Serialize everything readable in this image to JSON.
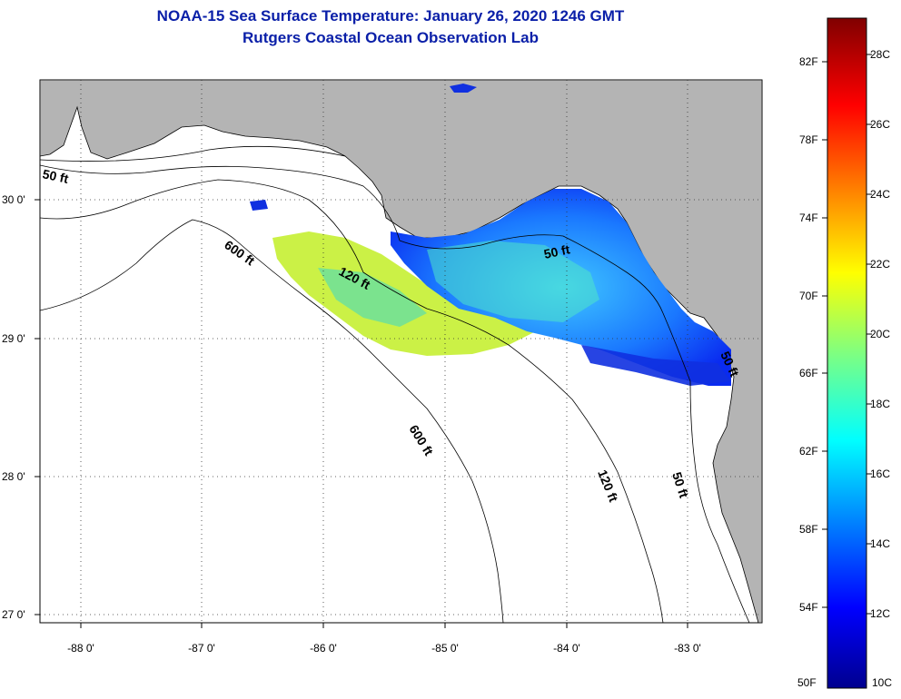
{
  "header": {
    "title_line1": "NOAA-15 Sea Surface Temperature:  January 26, 2020 1246 GMT",
    "title_line2": "Rutgers Coastal Ocean Observation Lab"
  },
  "map": {
    "lat_labels": [
      "30 0'",
      "29 0'",
      "28 0'",
      "27 0'"
    ],
    "lon_labels": [
      "-88 0'",
      "-87 0'",
      "-86 0'",
      "-85 0'",
      "-84 0'",
      "-83 0'"
    ],
    "contour_labels": [
      "50 ft",
      "600 ft",
      "120 ft",
      "50 ft",
      "600 ft",
      "120 ft",
      "50 ft",
      "50 ft"
    ],
    "land_color": "#b4b4b4"
  },
  "colorbar": {
    "fahrenheit_labels": [
      "82F",
      "78F",
      "74F",
      "70F",
      "66F",
      "62F",
      "58F",
      "54F",
      "50F"
    ],
    "celsius_labels": [
      "28C",
      "26C",
      "24C",
      "22C",
      "20C",
      "18C",
      "16C",
      "14C",
      "12C",
      "10C"
    ]
  }
}
